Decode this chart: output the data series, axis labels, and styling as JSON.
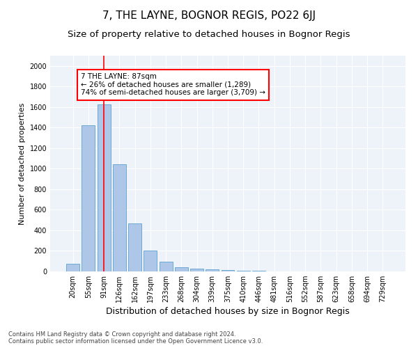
{
  "title": "7, THE LAYNE, BOGNOR REGIS, PO22 6JJ",
  "subtitle": "Size of property relative to detached houses in Bognor Regis",
  "xlabel": "Distribution of detached houses by size in Bognor Regis",
  "ylabel": "Number of detached properties",
  "bar_color": "#aec6e8",
  "bar_edge_color": "#6aaad4",
  "categories": [
    "20sqm",
    "55sqm",
    "91sqm",
    "126sqm",
    "162sqm",
    "197sqm",
    "233sqm",
    "268sqm",
    "304sqm",
    "339sqm",
    "375sqm",
    "410sqm",
    "446sqm",
    "481sqm",
    "516sqm",
    "552sqm",
    "587sqm",
    "623sqm",
    "658sqm",
    "694sqm",
    "729sqm"
  ],
  "values": [
    75,
    1420,
    1625,
    1045,
    470,
    200,
    95,
    40,
    30,
    20,
    15,
    5,
    5,
    3,
    2,
    2,
    1,
    1,
    1,
    1,
    0
  ],
  "ylim": [
    0,
    2100
  ],
  "yticks": [
    0,
    200,
    400,
    600,
    800,
    1000,
    1200,
    1400,
    1600,
    1800,
    2000
  ],
  "red_line_index": 2,
  "annotation_line1": "7 THE LAYNE: 87sqm",
  "annotation_line2": "← 26% of detached houses are smaller (1,289)",
  "annotation_line3": "74% of semi-detached houses are larger (3,709) →",
  "footer1": "Contains HM Land Registry data © Crown copyright and database right 2024.",
  "footer2": "Contains public sector information licensed under the Open Government Licence v3.0.",
  "background_color": "#eef2f9",
  "grid_color": "#ffffff",
  "title_fontsize": 11,
  "subtitle_fontsize": 9.5,
  "xlabel_fontsize": 9,
  "ylabel_fontsize": 8,
  "tick_fontsize": 7,
  "annotation_fontsize": 7.5,
  "footer_fontsize": 6
}
